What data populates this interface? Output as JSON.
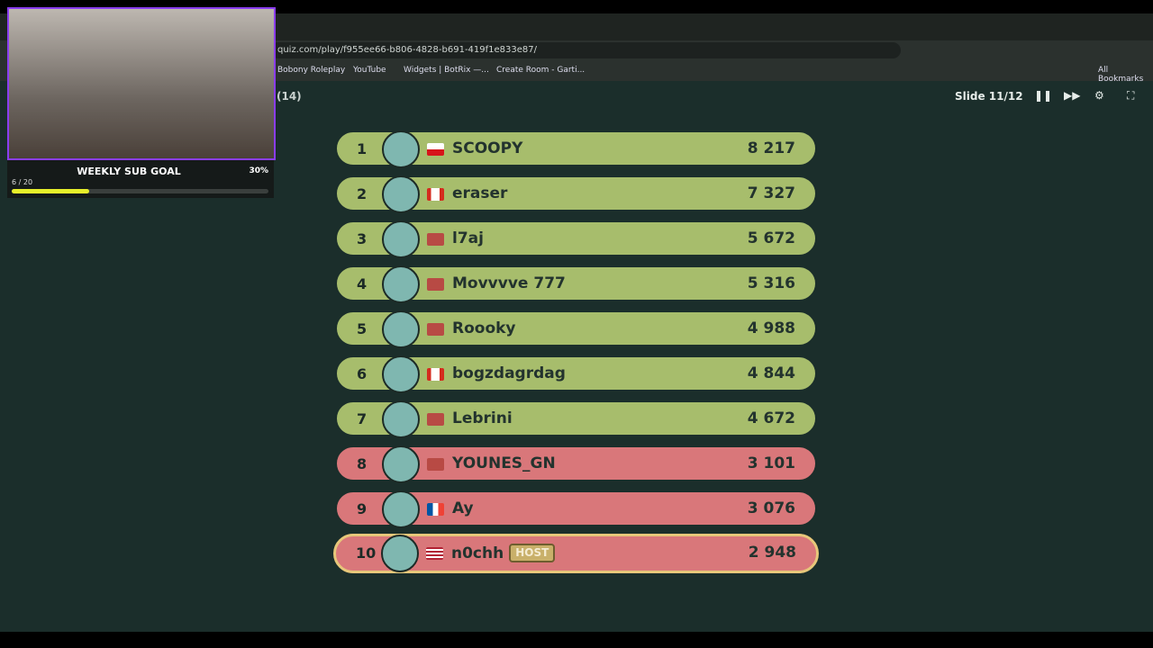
{
  "browser": {
    "url": "quiz.com/play/f955ee66-b806-4828-b691-419f1e833e87/",
    "bookmarks": [
      "Bobony Roleplay",
      "YouTube",
      "Widgets | BotRix —...",
      "Create Room - Garti...",
      "All Bookmarks"
    ]
  },
  "header": {
    "count": "(14)",
    "slide": "Slide 11/12"
  },
  "overlay": {
    "title": "WEEKLY SUB GOAL",
    "percent": "30%",
    "progress": "6 / 20"
  },
  "leaderboard": {
    "rows": [
      {
        "rank": 1,
        "name": "SCOOPY",
        "score": "8 217",
        "flag": "cz",
        "color": "#a7bd6c"
      },
      {
        "rank": 2,
        "name": "eraser",
        "score": "7 327",
        "flag": "ca",
        "color": "#a7bd6c"
      },
      {
        "rank": 3,
        "name": "l7aj",
        "score": "5 672",
        "flag": "none",
        "color": "#a7bd6c"
      },
      {
        "rank": 4,
        "name": "Movvvve 777",
        "score": "5 316",
        "flag": "none",
        "color": "#a7bd6c"
      },
      {
        "rank": 5,
        "name": "Roooky",
        "score": "4 988",
        "flag": "none",
        "color": "#a7bd6c"
      },
      {
        "rank": 6,
        "name": "bogzdagrdag",
        "score": "4 844",
        "flag": "ca",
        "color": "#a7bd6c"
      },
      {
        "rank": 7,
        "name": "Lebrini",
        "score": "4 672",
        "flag": "none",
        "color": "#a7bd6c"
      },
      {
        "rank": 8,
        "name": "YOUNES_GN",
        "score": "3 101",
        "flag": "none",
        "color": "#d9777a"
      },
      {
        "rank": 9,
        "name": "Ay",
        "score": "3 076",
        "flag": "fr",
        "color": "#d9777a"
      },
      {
        "rank": 10,
        "name": "n0chh",
        "tag": "HOST",
        "score": "2 948",
        "flag": "us",
        "color": "#d9777a"
      }
    ]
  }
}
